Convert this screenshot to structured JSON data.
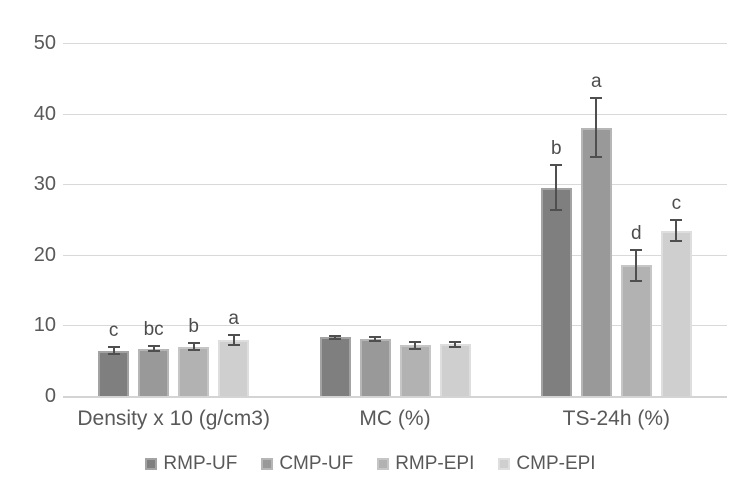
{
  "chart_data": {
    "type": "bar",
    "title": "",
    "xlabel": "",
    "ylabel": "",
    "categories": [
      "Density x 10 (g/cm3)",
      "MC (%)",
      "TS-24h (%)"
    ],
    "series": [
      {
        "name": "RMP-UF",
        "color": "#7f7f7f",
        "border_color": "#a3a3a3",
        "values": [
          6.4,
          8.3,
          29.5
        ],
        "errors": [
          0.5,
          0.25,
          3.2
        ],
        "letters": [
          "c",
          "",
          "b"
        ]
      },
      {
        "name": "CMP-UF",
        "color": "#999999",
        "border_color": "#b6b6b6",
        "values": [
          6.7,
          8.1,
          38.0
        ],
        "errors": [
          0.35,
          0.3,
          4.2
        ],
        "letters": [
          "bc",
          "",
          "a"
        ]
      },
      {
        "name": "RMP-EPI",
        "color": "#b2b2b2",
        "border_color": "#c6c6c6",
        "values": [
          7.0,
          7.2,
          18.5
        ],
        "errors": [
          0.45,
          0.5,
          2.2
        ],
        "letters": [
          "b",
          "",
          "d"
        ]
      },
      {
        "name": "CMP-EPI",
        "color": "#cfcfcf",
        "border_color": "#dedede",
        "values": [
          7.9,
          7.3,
          23.4
        ],
        "errors": [
          0.7,
          0.3,
          1.5
        ],
        "letters": [
          "a",
          "",
          "c"
        ]
      }
    ],
    "yticks": [
      0,
      10,
      20,
      30,
      40,
      50
    ],
    "ylim": [
      0,
      50
    ],
    "grid": true,
    "legend_position": "bottom",
    "colors": {
      "background": "#ffffff",
      "gridline": "#d9d9d9",
      "axis_line": "#d4d4d4",
      "text": "#595959",
      "error_bar": "#4f4f4f"
    }
  }
}
